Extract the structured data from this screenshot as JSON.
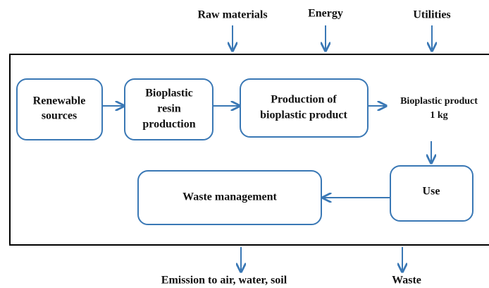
{
  "inputs": [
    "Raw materials",
    "Energy",
    "Utilities"
  ],
  "nodes": [
    {
      "lines": [
        "Renewable",
        "sources"
      ]
    },
    {
      "lines": [
        "Bioplastic",
        "resin",
        "production"
      ]
    },
    {
      "lines": [
        "Production of",
        "bioplastic product"
      ]
    },
    {
      "lines": [
        "Bioplastic product",
        "1 kg"
      ]
    },
    {
      "lines": [
        "Use"
      ]
    },
    {
      "lines": [
        "Waste management"
      ]
    }
  ],
  "outputs": [
    "Emission to air, water, soil",
    "Waste"
  ]
}
